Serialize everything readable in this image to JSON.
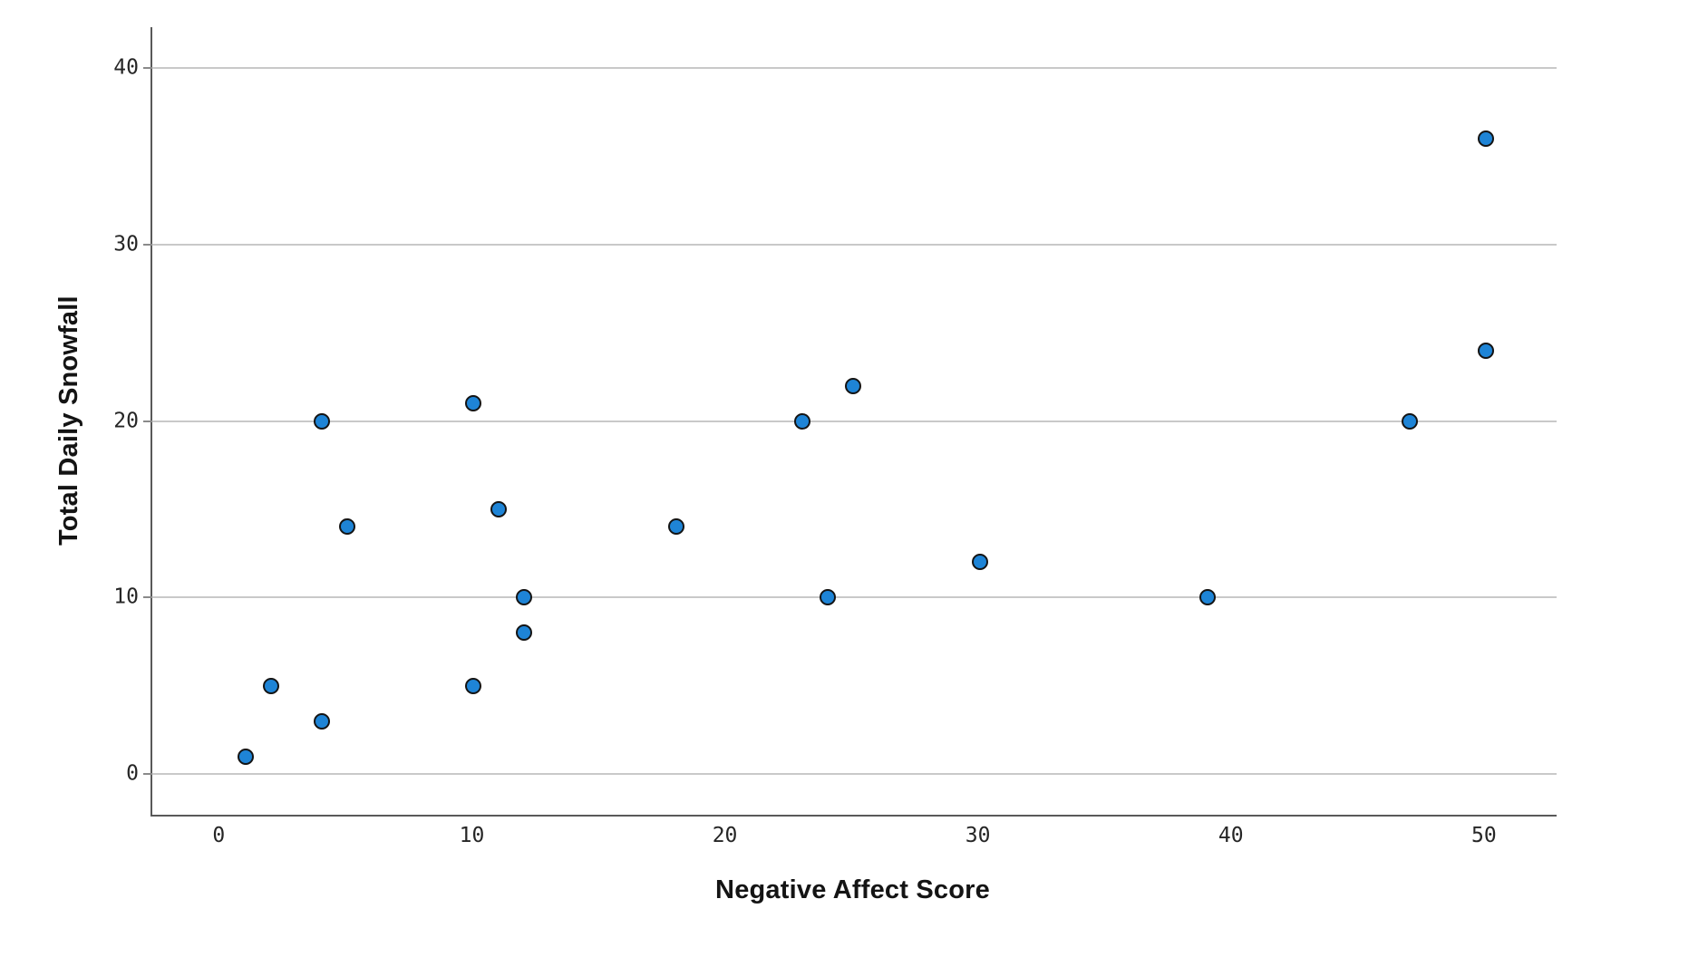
{
  "chart_data": {
    "type": "scatter",
    "title": "",
    "xlabel": "Negative Affect Score",
    "ylabel": "Total Daily Snowfall",
    "xticks": [
      0,
      10,
      20,
      30,
      40,
      50
    ],
    "yticks": [
      0,
      10,
      20,
      30,
      40
    ],
    "xlim": [
      -2.7,
      52.8
    ],
    "ylim": [
      -2.3,
      42.3
    ],
    "grid": "horizontal-gridlines-only",
    "legend": "none",
    "marker": "filled-circle",
    "points": [
      {
        "x": 1,
        "y": 1
      },
      {
        "x": 2,
        "y": 5
      },
      {
        "x": 4,
        "y": 3
      },
      {
        "x": 4,
        "y": 20
      },
      {
        "x": 5,
        "y": 14
      },
      {
        "x": 10,
        "y": 5
      },
      {
        "x": 10,
        "y": 21
      },
      {
        "x": 11,
        "y": 15
      },
      {
        "x": 12,
        "y": 8
      },
      {
        "x": 12,
        "y": 10
      },
      {
        "x": 18,
        "y": 14
      },
      {
        "x": 23,
        "y": 20
      },
      {
        "x": 24,
        "y": 10
      },
      {
        "x": 25,
        "y": 22
      },
      {
        "x": 30,
        "y": 12
      },
      {
        "x": 39,
        "y": 10
      },
      {
        "x": 47,
        "y": 20
      },
      {
        "x": 50,
        "y": 24
      },
      {
        "x": 50,
        "y": 36
      }
    ]
  },
  "colors": {
    "marker_fill": "#1e84d6",
    "marker_stroke": "#141414",
    "axis_line": "#595959",
    "gridline": "#c9c9c9",
    "tick_stub": "#8a8a8a",
    "tick_text": "#262626",
    "title_text": "#141414",
    "background": "#ffffff"
  }
}
